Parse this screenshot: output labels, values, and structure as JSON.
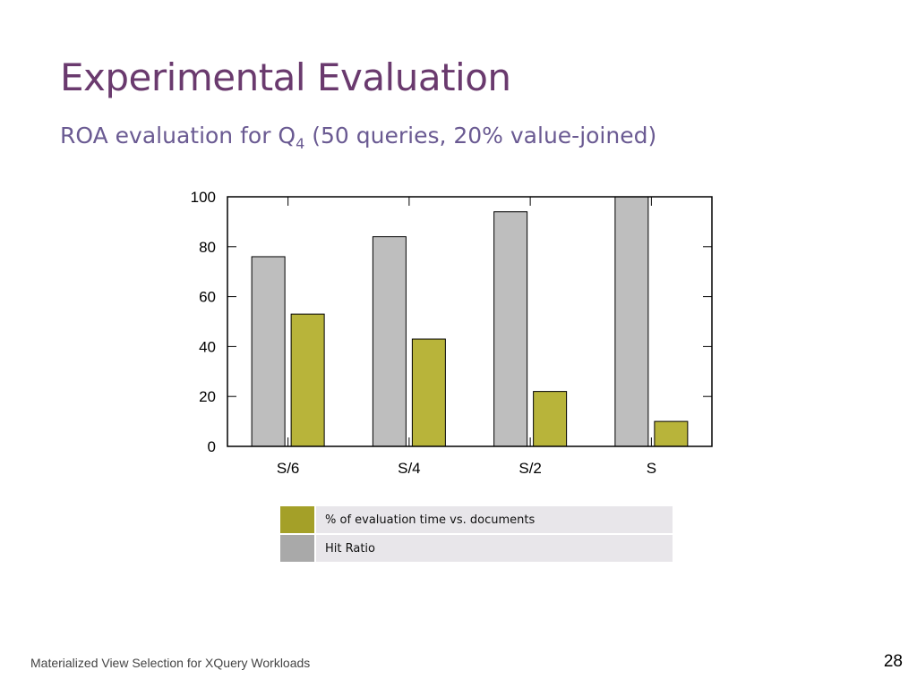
{
  "slide": {
    "title": "Experimental Evaluation",
    "subtitle_main": "ROA evaluation for Q",
    "subtitle_sub": "4",
    "subtitle_rest": " (50 queries, 20% value-joined)",
    "footer": "Materialized View Selection for XQuery Workloads",
    "page_number": "28"
  },
  "chart_data": {
    "type": "bar",
    "categories": [
      "S/6",
      "S/4",
      "S/2",
      "S"
    ],
    "series": [
      {
        "name": "Hit Ratio",
        "values": [
          76,
          84,
          94,
          100
        ],
        "color": "#bebebe"
      },
      {
        "name": "% of evaluation time vs. documents",
        "values": [
          53,
          43,
          22,
          10
        ],
        "color": "#b8b43a"
      }
    ],
    "ylim": [
      0,
      100
    ],
    "yticks": [
      0,
      20,
      40,
      60,
      80,
      100
    ],
    "title": "",
    "xlabel": "",
    "ylabel": ""
  },
  "legend": {
    "items": [
      {
        "label": "% of evaluation time vs. documents",
        "color": "#a4a028"
      },
      {
        "label": "Hit Ratio",
        "color": "#a9a9a9"
      }
    ]
  }
}
